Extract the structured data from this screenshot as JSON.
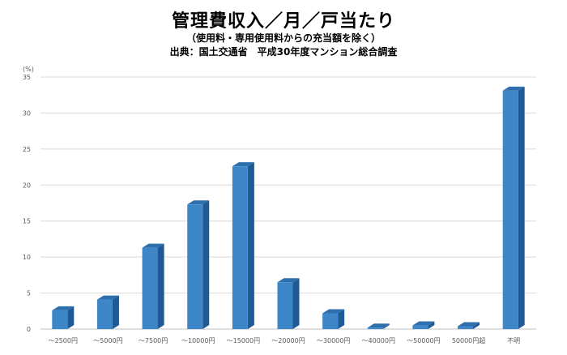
{
  "chart_data": {
    "type": "bar",
    "title": "管理費収入／月／戸当たり",
    "subtitle": "（使用料・専用使用料からの充当額を除く）",
    "source": "出典：国土交通省　平成30年度マンション総合調査",
    "ylabel": "(%)",
    "ylim": [
      0,
      35
    ],
    "yticks": [
      "0",
      "5",
      "10",
      "15",
      "20",
      "25",
      "30",
      "35"
    ],
    "grid": true,
    "categories": [
      "～2500円",
      "～5000円",
      "～7500円",
      "～10000円",
      "～15000円",
      "～20000円",
      "～30000円",
      "～40000円",
      "～50000円",
      "50000円超",
      "不明"
    ],
    "values": [
      2.6,
      4.1,
      11.3,
      17.3,
      22.6,
      6.5,
      2.2,
      0.2,
      0.5,
      0.4,
      33.1
    ],
    "colors": {
      "bar": "#3d87c9",
      "bar_side": "#1f5a96",
      "bar_top": "#2e6fad",
      "grid": "#d9d9d9"
    }
  }
}
